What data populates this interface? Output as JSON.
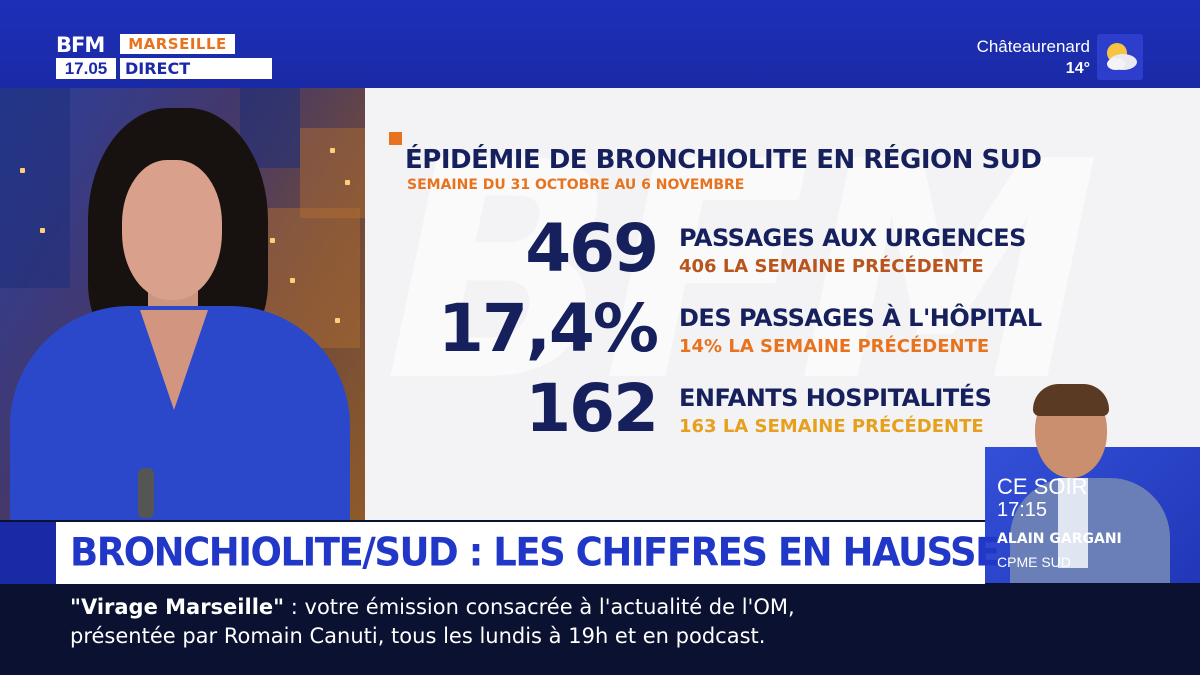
{
  "header": {
    "brand": "BFM",
    "city": "MARSEILLE",
    "time": "17.05",
    "live_label": "DIRECT",
    "weather": {
      "city": "Châteaurenard",
      "temp": "14°",
      "icon": "sun-cloud-icon"
    }
  },
  "panel": {
    "title": "ÉPIDÉMIE DE BRONCHIOLITE EN RÉGION SUD",
    "subtitle": "SEMAINE DU 31 OCTOBRE AU 6 NOVEMBRE",
    "watermark": "BFM",
    "stats": [
      {
        "value": "469",
        "label": "PASSAGES AUX URGENCES",
        "previous": "406 LA SEMAINE PRÉCÉDENTE",
        "previous_color": "#b8541c"
      },
      {
        "value": "17,4%",
        "label": "DES PASSAGES À L'HÔPITAL",
        "previous": "14% LA SEMAINE PRÉCÉDENTE",
        "previous_color": "#e8731e"
      },
      {
        "value": "162",
        "label": "ENFANTS HOSPITALITÉS",
        "previous": "163 LA SEMAINE PRÉCÉDENTE",
        "previous_color": "#e6a01e"
      }
    ]
  },
  "promo": {
    "when": "CE SOIR",
    "time": "17:15",
    "guest_name": "ALAIN GARGANI",
    "guest_org": "CPME SUD"
  },
  "headline": "BRONCHIOLITE/SUD : LES CHIFFRES EN HAUSSE",
  "ticker": {
    "show_name": "\"Virage Marseille\"",
    "separator": " :  ",
    "line1_rest": "votre émission consacrée à l'actualité de l'OM,",
    "line2": "présentée par Romain Canuti, tous les lundis à 19h et en podcast."
  },
  "colors": {
    "brand_blue": "#1a2aa6",
    "accent_orange": "#e8731e",
    "navy_text": "#16205c",
    "headline_blue": "#2137c8"
  }
}
